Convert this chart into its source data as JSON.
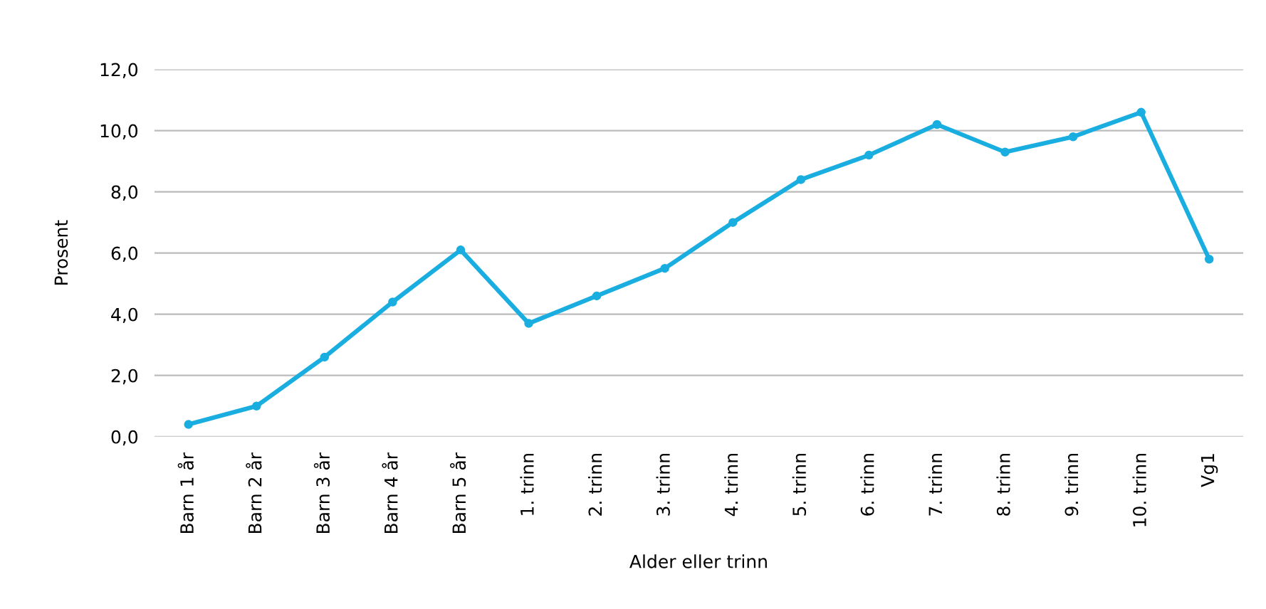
{
  "chart_data": {
    "type": "line",
    "xlabel": "Alder eller trinn",
    "ylabel": "Prosent",
    "categories": [
      "Barn 1 år",
      "Barn 2 år",
      "Barn 3 år",
      "Barn 4 år",
      "Barn 5 år",
      "1. trinn",
      "2. trinn",
      "3. trinn",
      "4. trinn",
      "5. trinn",
      "6. trinn",
      "7. trinn",
      "8. trinn",
      "9. trinn",
      "10. trinn",
      "Vg1"
    ],
    "series": [
      {
        "color": "#1aaee0",
        "values": [
          0.4,
          1.0,
          2.6,
          4.4,
          6.1,
          3.7,
          4.6,
          5.5,
          7.0,
          8.4,
          9.2,
          10.2,
          9.3,
          9.8,
          10.6,
          5.8
        ]
      }
    ],
    "ylim": [
      0,
      12
    ],
    "yticks": [
      {
        "value": 0,
        "label": "0,0"
      },
      {
        "value": 2,
        "label": "2,0"
      },
      {
        "value": 4,
        "label": "4,0"
      },
      {
        "value": 6,
        "label": "6,0"
      },
      {
        "value": 8,
        "label": "8,0"
      },
      {
        "value": 10,
        "label": "10,0"
      },
      {
        "value": 12,
        "label": "12,0"
      }
    ],
    "grid": "y",
    "legend": false,
    "marker": "circle",
    "line_style": "solid"
  }
}
